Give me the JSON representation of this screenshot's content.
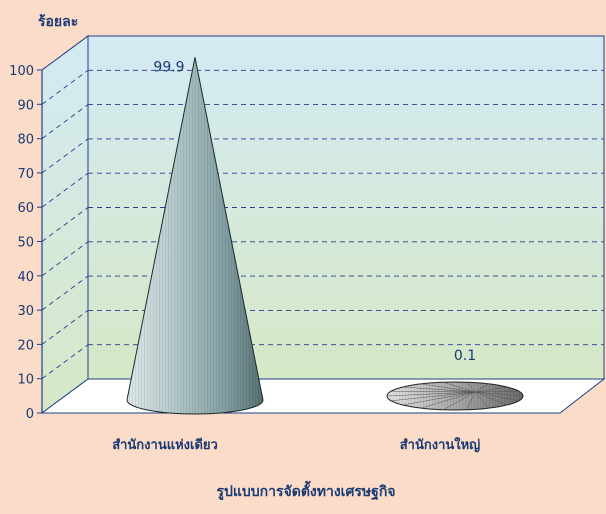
{
  "colors": {
    "background": "#fbdcc8",
    "axis_text": "#1a3a73",
    "gridline": "#2b3a8f",
    "wall_top": "#d4eaf4",
    "wall_bottom": "#d6e8c6",
    "floor": "#ffffff",
    "cone_main": "#9fb8bc",
    "cone_flat": "#b8b8b8"
  },
  "chart_data": {
    "type": "bar",
    "style": "3d-cone",
    "title": "",
    "ylabel": "ร้อยละ",
    "xlabel": "รูปแบบการจัดตั้งทางเศรษฐกิจ",
    "categories": [
      "สำนักงานแห่งเดียว",
      "สำนักงานใหญ่"
    ],
    "values": [
      99.9,
      0.1
    ],
    "data_labels": [
      "99.9",
      "0.1"
    ],
    "ylim": [
      0,
      100
    ],
    "yticks": [
      "0",
      "10",
      "20",
      "30",
      "40",
      "50",
      "60",
      "70",
      "80",
      "90",
      "100"
    ],
    "grid": true,
    "legend": "none"
  }
}
